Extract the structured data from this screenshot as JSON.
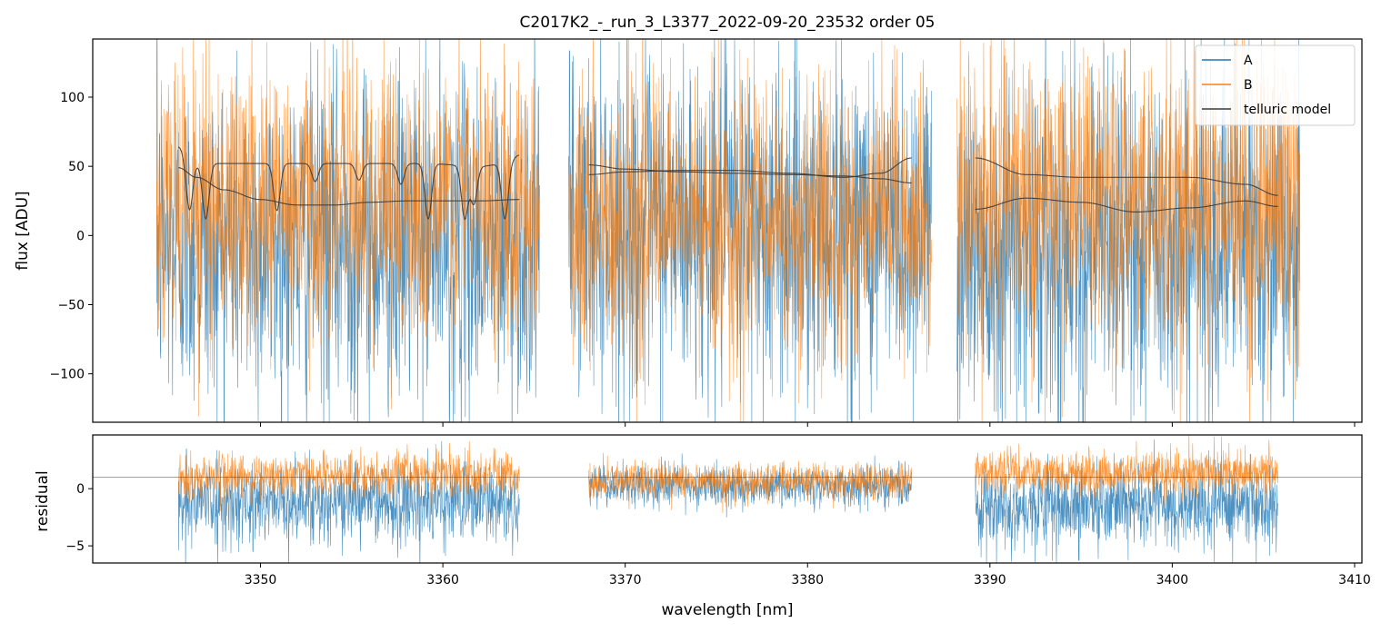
{
  "chart_data": [
    {
      "type": "line",
      "title": "C2017K2_-_run_3_L3377_2022-09-20_23532  order 05",
      "xlabel": "",
      "ylabel": "flux [ADU]",
      "xlim": [
        3340.8,
        3410.4
      ],
      "ylim": [
        -135,
        142
      ],
      "y_ticks": [
        -100,
        -50,
        0,
        50,
        100
      ],
      "y_tick_labels": [
        "−100",
        "−50",
        "0",
        "50",
        "100"
      ],
      "x_ticks": [
        3350,
        3360,
        3370,
        3380,
        3390,
        3400,
        3410
      ],
      "grid": false,
      "legend_position": "top-right",
      "segments": [
        [
          3344.3,
          3365.3
        ],
        [
          3366.9,
          3386.8
        ],
        [
          3388.2,
          3407.0
        ]
      ],
      "series": [
        {
          "name": "A",
          "color": "#1f77b4",
          "center": -5,
          "amplitude": 75,
          "segment_centers": [
            -5,
            8,
            -5
          ]
        },
        {
          "name": "B",
          "color": "#ff7f0e",
          "center": 25,
          "amplitude": 65,
          "segment_centers": [
            25,
            10,
            25
          ]
        },
        {
          "name": "telluric model",
          "color": "#3a3a3a",
          "curves": [
            {
              "x": [
                3345.5,
                3346.5,
                3348,
                3350,
                3352,
                3354,
                3356,
                3358,
                3360,
                3362,
                3364.2
              ],
              "y": [
                49,
                42,
                33,
                26,
                22,
                22,
                24,
                25,
                25,
                25,
                26
              ]
            },
            {
              "x": [
                3345.5,
                3346.2,
                3347.5,
                3350,
                3353,
                3356,
                3359,
                3362,
                3363.5,
                3364.2
              ],
              "y": [
                64,
                52,
                52,
                52,
                52,
                52,
                52,
                50,
                52,
                58
              ]
            },
            {
              "x": [
                3368,
                3370,
                3373,
                3376,
                3379,
                3382,
                3384,
                3385.7
              ],
              "y": [
                51,
                48,
                46,
                45,
                44,
                43,
                41,
                38
              ]
            },
            {
              "x": [
                3368,
                3370,
                3373,
                3376,
                3379,
                3382,
                3384,
                3385.7
              ],
              "y": [
                44,
                46,
                47,
                47,
                45,
                42,
                45,
                56
              ]
            },
            {
              "x": [
                3389.2,
                3392,
                3395,
                3398,
                3401,
                3404,
                3405.8
              ],
              "y": [
                56,
                44,
                42,
                42,
                42,
                37,
                29
              ]
            },
            {
              "x": [
                3389.2,
                3392,
                3395,
                3398,
                3401,
                3404,
                3405.8
              ],
              "y": [
                19,
                27,
                24,
                17,
                20,
                25,
                21
              ]
            }
          ],
          "absorption_lines": [
            {
              "x": 3346.1,
              "depth": 34
            },
            {
              "x": 3347.0,
              "depth": 40
            },
            {
              "x": 3350.9,
              "depth": 34
            },
            {
              "x": 3353.0,
              "depth": 13
            },
            {
              "x": 3355.4,
              "depth": 12
            },
            {
              "x": 3357.7,
              "depth": 15
            },
            {
              "x": 3359.2,
              "depth": 40
            },
            {
              "x": 3361.2,
              "depth": 38
            },
            {
              "x": 3361.7,
              "depth": 27
            },
            {
              "x": 3363.4,
              "depth": 40
            }
          ]
        }
      ]
    },
    {
      "type": "line",
      "title": "",
      "xlabel": "wavelength [nm]",
      "ylabel": "residual",
      "xlim": [
        3340.8,
        3410.4
      ],
      "ylim": [
        -6.5,
        4.7
      ],
      "y_ticks": [
        -5,
        0
      ],
      "y_tick_labels": [
        "−5",
        "0"
      ],
      "x_ticks": [
        3350,
        3360,
        3370,
        3380,
        3390,
        3400,
        3410
      ],
      "x_tick_labels": [
        "3350",
        "3360",
        "3370",
        "3380",
        "3390",
        "3400",
        "3410"
      ],
      "reference_line_y": 1.0,
      "segments": [
        [
          3345.5,
          3364.2
        ],
        [
          3368.0,
          3385.7
        ],
        [
          3389.2,
          3405.8
        ]
      ],
      "series": [
        {
          "name": "A",
          "color": "#1f77b4",
          "segment_centers": [
            -1.2,
            0.2,
            -1.5
          ],
          "segment_amplitudes": [
            3.2,
            1.6,
            3.2
          ]
        },
        {
          "name": "B",
          "color": "#ff7f0e",
          "segment_centers": [
            1.2,
            0.7,
            1.4
          ],
          "segment_amplitudes": [
            1.8,
            1.5,
            1.8
          ]
        }
      ]
    }
  ]
}
